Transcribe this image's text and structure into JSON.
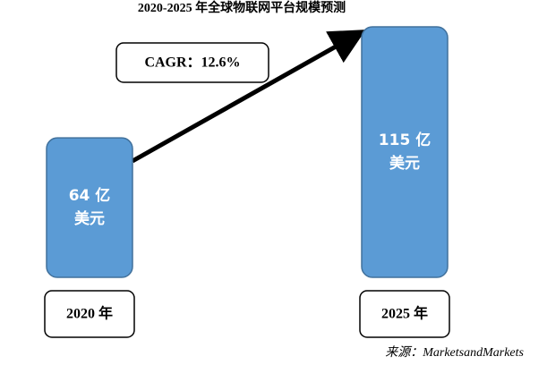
{
  "chart_data": {
    "type": "bar",
    "title": "2020-2025 年全球物联网平台规模预测",
    "categories": [
      "2020 年",
      "2025 年"
    ],
    "values": [
      64,
      115
    ],
    "value_labels": [
      "64 亿\n美元",
      "115 亿\n美元"
    ],
    "color": "#5b9bd5",
    "annotation": "CAGR：12.6%",
    "source": "来源：MarketsandMarkets"
  }
}
